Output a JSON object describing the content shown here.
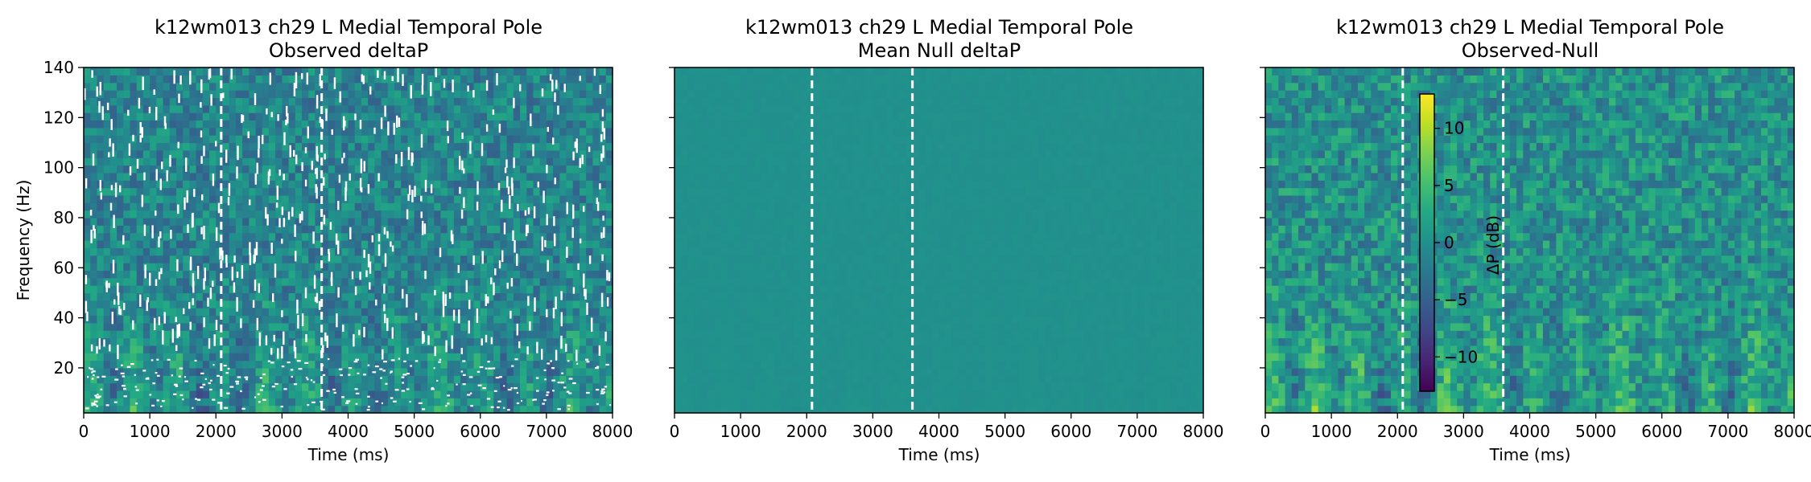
{
  "ylabel": "Frequency (Hz)",
  "colorbar": {
    "label": "ΔP (dB)",
    "ticks": [
      10,
      5,
      0,
      -5,
      -10
    ],
    "range": [
      -13,
      13
    ],
    "colormap": "viridis"
  },
  "chart_data": [
    {
      "type": "heatmap",
      "title": "k12wm013 ch29 L Medial Temporal Pole",
      "subtitle": "Observed deltaP",
      "xlabel": "Time (ms)",
      "ylabel": "Frequency (Hz)",
      "xlim": [
        0,
        8000
      ],
      "ylim": [
        2,
        140
      ],
      "xticks": [
        0,
        1000,
        2000,
        3000,
        4000,
        5000,
        6000,
        7000,
        8000
      ],
      "yticks": [
        20,
        40,
        60,
        80,
        100,
        120,
        140
      ],
      "event_lines_ms": [
        2080,
        3600
      ],
      "has_missing_values": true
    },
    {
      "type": "heatmap",
      "title": "k12wm013 ch29 L Medial Temporal Pole",
      "subtitle": "Mean Null deltaP",
      "xlabel": "Time (ms)",
      "xlim": [
        0,
        8000
      ],
      "ylim": [
        2,
        140
      ],
      "xticks": [
        0,
        1000,
        2000,
        3000,
        4000,
        5000,
        6000,
        7000,
        8000
      ],
      "yticks": [
        20,
        40,
        60,
        80,
        100,
        120,
        140
      ],
      "event_lines_ms": [
        2080,
        3600
      ],
      "value_approx": 0
    },
    {
      "type": "heatmap",
      "title": "k12wm013 ch29 L Medial Temporal Pole",
      "subtitle": "Observed-Null",
      "xlabel": "Time (ms)",
      "xlim": [
        0,
        8000
      ],
      "ylim": [
        2,
        140
      ],
      "xticks": [
        0,
        1000,
        2000,
        3000,
        4000,
        5000,
        6000,
        7000,
        8000
      ],
      "yticks": [
        20,
        40,
        60,
        80,
        100,
        120,
        140
      ],
      "event_lines_ms": [
        2080,
        3600
      ],
      "value_range_db": [
        -13,
        13
      ]
    }
  ]
}
